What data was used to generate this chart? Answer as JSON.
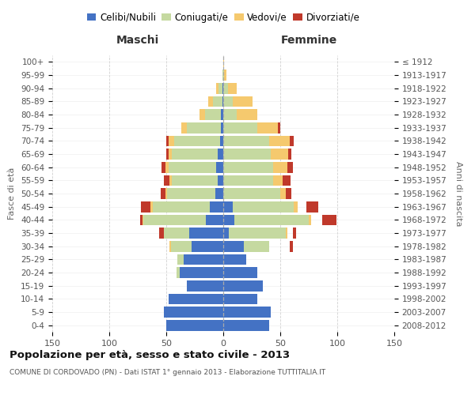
{
  "age_groups": [
    "0-4",
    "5-9",
    "10-14",
    "15-19",
    "20-24",
    "25-29",
    "30-34",
    "35-39",
    "40-44",
    "45-49",
    "50-54",
    "55-59",
    "60-64",
    "65-69",
    "70-74",
    "75-79",
    "80-84",
    "85-89",
    "90-94",
    "95-99",
    "100+"
  ],
  "birth_years": [
    "2008-2012",
    "2003-2007",
    "1998-2002",
    "1993-1997",
    "1988-1992",
    "1983-1987",
    "1978-1982",
    "1973-1977",
    "1968-1972",
    "1963-1967",
    "1958-1962",
    "1953-1957",
    "1948-1952",
    "1943-1947",
    "1938-1942",
    "1933-1937",
    "1928-1932",
    "1923-1927",
    "1918-1922",
    "1913-1917",
    "≤ 1912"
  ],
  "male_celibe": [
    50,
    52,
    48,
    32,
    38,
    35,
    28,
    30,
    15,
    12,
    7,
    5,
    6,
    5,
    3,
    2,
    2,
    1,
    1,
    0,
    0
  ],
  "male_coniugato": [
    0,
    0,
    0,
    0,
    3,
    5,
    18,
    22,
    55,
    50,
    42,
    40,
    42,
    40,
    40,
    30,
    14,
    8,
    3,
    1,
    0
  ],
  "male_vedovo": [
    0,
    0,
    0,
    0,
    0,
    0,
    1,
    0,
    1,
    2,
    2,
    2,
    3,
    3,
    5,
    5,
    5,
    4,
    2,
    0,
    0
  ],
  "male_divorziato": [
    0,
    0,
    0,
    0,
    0,
    0,
    0,
    4,
    2,
    8,
    4,
    5,
    3,
    2,
    2,
    0,
    0,
    0,
    0,
    0,
    0
  ],
  "female_celibe": [
    40,
    42,
    30,
    35,
    30,
    20,
    18,
    5,
    10,
    8,
    0,
    0,
    0,
    0,
    0,
    0,
    0,
    0,
    0,
    0,
    0
  ],
  "female_coniugato": [
    0,
    0,
    0,
    0,
    5,
    8,
    40,
    55,
    75,
    62,
    50,
    44,
    44,
    42,
    40,
    30,
    12,
    8,
    4,
    1,
    0
  ],
  "female_vedovo": [
    0,
    0,
    0,
    0,
    0,
    0,
    0,
    1,
    2,
    3,
    5,
    8,
    12,
    15,
    18,
    18,
    18,
    18,
    8,
    2,
    1
  ],
  "female_divorziato": [
    0,
    0,
    0,
    0,
    0,
    0,
    3,
    3,
    12,
    10,
    5,
    7,
    5,
    3,
    4,
    2,
    0,
    0,
    0,
    0,
    0
  ],
  "color_celibe": "#4472c4",
  "color_coniugato": "#c5d9a0",
  "color_vedovo": "#f5c96e",
  "color_divorziato": "#c0392b",
  "title": "Popolazione per età, sesso e stato civile - 2013",
  "subtitle": "COMUNE DI CORDOVADO (PN) - Dati ISTAT 1° gennaio 2013 - Elaborazione TUTTITALIA.IT",
  "xlabel_left": "Maschi",
  "xlabel_right": "Femmine",
  "ylabel_left": "Fasce di età",
  "ylabel_right": "Anni di nascita",
  "xlim": 150,
  "bg_color": "#ffffff",
  "grid_color": "#cccccc"
}
